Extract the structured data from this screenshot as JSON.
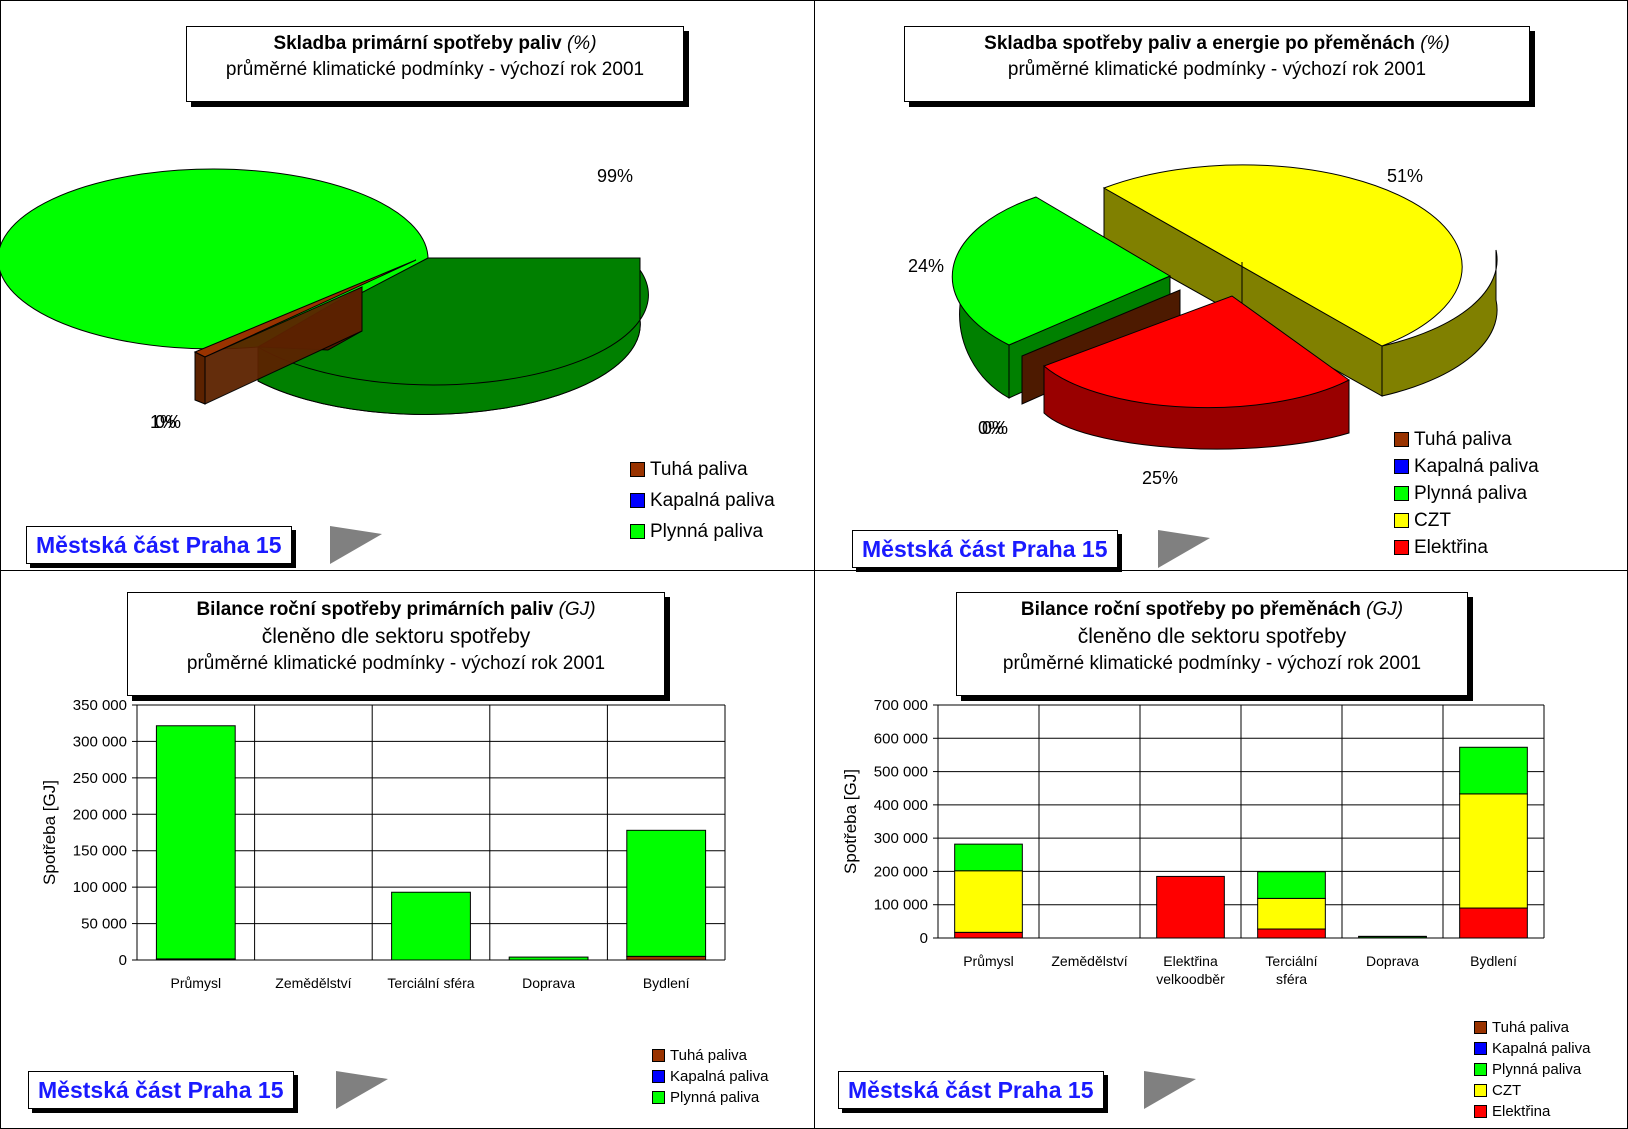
{
  "region_label": "Městská část Praha 15",
  "chart_data": [
    {
      "type": "pie",
      "title": "Skladba primární spotřeby paliv",
      "title_unit": "(%)",
      "subtitle": "průměrné klimatické podmínky - výchozí rok 2001",
      "categories": [
        "Tuhá paliva",
        "Kapalná paliva",
        "Plynná paliva"
      ],
      "values": [
        1,
        0,
        99
      ],
      "labels": [
        "1%",
        "0%",
        "99%"
      ],
      "colors": [
        "#993300",
        "#0000ff",
        "#00ff00"
      ],
      "legend": "bottom-right"
    },
    {
      "type": "pie",
      "title": "Skladba spotřeby paliv a energie po přeměnách",
      "title_unit": "(%)",
      "subtitle": "průměrné klimatické podmínky - výchozí rok 2001",
      "categories": [
        "Tuhá paliva",
        "Kapalná paliva",
        "Plynná paliva",
        "CZT",
        "Elektřina"
      ],
      "values": [
        0,
        0,
        24,
        51,
        25
      ],
      "labels": [
        "0%",
        "0%",
        "24%",
        "51%",
        "25%"
      ],
      "colors": [
        "#993300",
        "#0000ff",
        "#00ff00",
        "#ffff00",
        "#ff0000"
      ],
      "legend": "bottom-right"
    },
    {
      "type": "bar",
      "stacked": true,
      "title": "Bilance roční spotřeby primárních paliv",
      "title_unit": "(GJ)",
      "subtitle": "členěno dle sektoru spotřeby",
      "subtitle2": "průměrné klimatické podmínky - výchozí rok 2001",
      "ylabel": "Spotřeba [GJ]",
      "ylim": [
        0,
        350000
      ],
      "yticks": [
        "0",
        "50 000",
        "100 000",
        "150 000",
        "200 000",
        "250 000",
        "300 000",
        "350 000"
      ],
      "categories": [
        "Průmysl",
        "Zemědělství",
        "Terciální sféra",
        "Doprava",
        "Bydlení"
      ],
      "series": [
        {
          "name": "Tuhá paliva",
          "color": "#993300",
          "values": [
            1500,
            0,
            0,
            0,
            5000
          ]
        },
        {
          "name": "Kapalná paliva",
          "color": "#0000ff",
          "values": [
            0,
            0,
            0,
            0,
            0
          ]
        },
        {
          "name": "Plynná paliva",
          "color": "#00ff00",
          "values": [
            320000,
            0,
            93000,
            4000,
            173000
          ]
        }
      ],
      "grid": true,
      "legend": "bottom-right"
    },
    {
      "type": "bar",
      "stacked": true,
      "title": "Bilance roční spotřeby po přeměnách",
      "title_unit": "(GJ)",
      "subtitle": "členěno dle sektoru spotřeby",
      "subtitle2": "průměrné klimatické podmínky - výchozí rok 2001",
      "ylabel": "Spotřeba [GJ]",
      "ylim": [
        0,
        700000
      ],
      "yticks": [
        "0",
        "100 000",
        "200 000",
        "300 000",
        "400 000",
        "500 000",
        "600 000",
        "700 000"
      ],
      "categories": [
        [
          "Průmysl"
        ],
        [
          "Zemědělství"
        ],
        [
          "Elektřina",
          "velkoodběr"
        ],
        [
          "Terciální",
          "sféra"
        ],
        [
          "Doprava"
        ],
        [
          "Bydlení"
        ]
      ],
      "series": [
        {
          "name": "Elektřina",
          "color": "#ff0000",
          "values": [
            17000,
            0,
            185000,
            27000,
            0,
            90000
          ]
        },
        {
          "name": "CZT",
          "color": "#ffff00",
          "values": [
            185000,
            0,
            0,
            92000,
            0,
            343000
          ]
        },
        {
          "name": "Plynná paliva",
          "color": "#00ff00",
          "values": [
            80000,
            0,
            0,
            80000,
            4000,
            140000
          ]
        },
        {
          "name": "Kapalná paliva",
          "color": "#0000ff",
          "values": [
            0,
            0,
            0,
            0,
            0,
            0
          ]
        },
        {
          "name": "Tuhá paliva",
          "color": "#993300",
          "values": [
            0,
            0,
            0,
            0,
            1000,
            0
          ]
        }
      ],
      "legend_order": [
        "Tuhá paliva",
        "Kapalná paliva",
        "Plynná paliva",
        "CZT",
        "Elektřina"
      ],
      "grid": true,
      "legend": "bottom-right"
    }
  ]
}
